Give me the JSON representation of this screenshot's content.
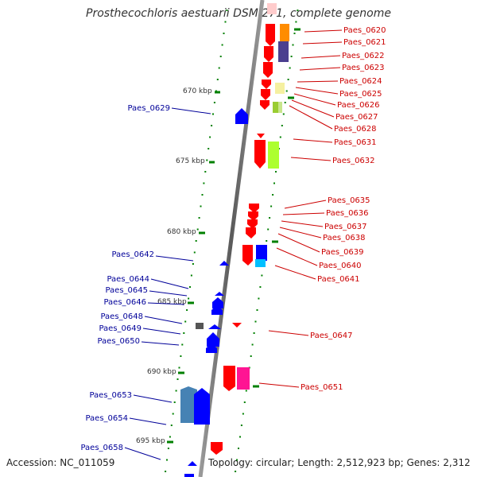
{
  "title": "Prosthecochloris aestuarii DSM 271, complete genome",
  "footer": {
    "accession": "Accession: NC_011059",
    "summary": "Topology: circular; Length: 2,512,923 bp; Genes: 2,312"
  },
  "scale_labels": [
    "670 kbp",
    "675 kbp",
    "680 kbp",
    "685 kbp",
    "690 kbp",
    "695 kbp"
  ],
  "right_genes": [
    "Paes_0620",
    "Paes_0621",
    "Paes_0622",
    "Paes_0623",
    "Paes_0624",
    "Paes_0625",
    "Paes_0626",
    "Paes_0627",
    "Paes_0628",
    "Paes_0631",
    "Paes_0632",
    "Paes_0635",
    "Paes_0636",
    "Paes_0637",
    "Paes_0638",
    "Paes_0639",
    "Paes_0640",
    "Paes_0641",
    "Paes_0647",
    "Paes_0651"
  ],
  "left_genes": [
    "Paes_0629",
    "Paes_0642",
    "Paes_0644",
    "Paes_0645",
    "Paes_0646",
    "Paes_0648",
    "Paes_0649",
    "Paes_0650",
    "Paes_0653",
    "Paes_0654",
    "Paes_0658"
  ],
  "colors": {
    "forward_gene": "#ff0000",
    "reverse_gene": "#0000ff",
    "right_label": "#cc0000",
    "left_label": "#000099",
    "tick": "#008000"
  }
}
